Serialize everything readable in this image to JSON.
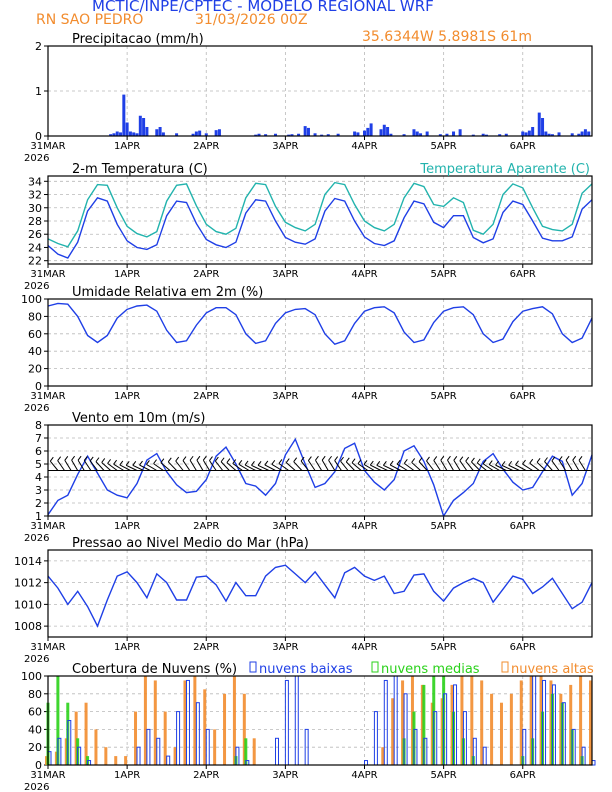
{
  "header": {
    "title": "MCTIC/INPE/CPTEC - MODELO REGIONAL WRF",
    "station": "RN SAO PEDRO",
    "init": "31/03/2026 00Z",
    "coords": "35.6344W 5.8981S 61m"
  },
  "colors": {
    "blue": "#1f3fe6",
    "teal": "#22b3ad",
    "orange": "#f28c2e",
    "green": "#2ad11a",
    "grid": "#b9b9b9",
    "axis": "#000000"
  },
  "x_axis": {
    "ticks": [
      "31MAR",
      "1APR",
      "2APR",
      "3APR",
      "4APR",
      "5APR",
      "6APR"
    ],
    "year": "2026",
    "hours_per_day": 24,
    "range_hours": [
      0,
      165
    ]
  },
  "chart_data": [
    {
      "type": "bar",
      "title": "Precipitacao (mm/h)",
      "ylim": [
        0,
        2
      ],
      "yticks": [
        0,
        1,
        2
      ],
      "x": [
        19,
        20,
        21,
        22,
        23,
        24,
        25,
        26,
        27,
        28,
        29,
        30,
        33,
        34,
        35,
        39,
        44,
        45,
        46,
        48,
        51,
        52,
        63,
        64,
        66,
        69,
        73,
        74,
        76,
        78,
        79,
        81,
        83,
        85,
        88,
        93,
        94,
        96,
        97,
        98,
        101,
        102,
        103,
        104,
        108,
        111,
        112,
        113,
        115,
        119,
        121,
        123,
        125,
        129,
        132,
        133,
        137,
        139,
        144,
        145,
        146,
        147,
        149,
        150,
        151,
        152,
        153,
        155,
        159,
        161,
        162,
        163,
        164
      ],
      "values": [
        0.04,
        0.06,
        0.1,
        0.08,
        0.92,
        0.3,
        0.1,
        0.08,
        0.06,
        0.45,
        0.4,
        0.2,
        0.15,
        0.2,
        0.08,
        0.06,
        0.05,
        0.1,
        0.12,
        0.06,
        0.13,
        0.15,
        0.03,
        0.05,
        0.04,
        0.05,
        0.03,
        0.04,
        0.05,
        0.22,
        0.18,
        0.06,
        0.03,
        0.04,
        0.05,
        0.1,
        0.08,
        0.12,
        0.18,
        0.28,
        0.15,
        0.25,
        0.2,
        0.05,
        0.04,
        0.15,
        0.1,
        0.06,
        0.1,
        0.04,
        0.05,
        0.1,
        0.15,
        0.03,
        0.05,
        0.03,
        0.04,
        0.05,
        0.1,
        0.08,
        0.12,
        0.2,
        0.52,
        0.4,
        0.1,
        0.05,
        0.04,
        0.08,
        0.06,
        0.05,
        0.1,
        0.15,
        0.1
      ],
      "series_colors": [
        "blue"
      ]
    },
    {
      "type": "line",
      "title": "2-m Temperatura (C)",
      "title2": "Temperatura Aparente (C)",
      "ylim": [
        21.5,
        34.8
      ],
      "yticks": [
        22,
        24,
        26,
        28,
        30,
        32,
        34
      ],
      "x": [
        0,
        3,
        6,
        9,
        12,
        15,
        18,
        21,
        24,
        27,
        30,
        33,
        36,
        39,
        42,
        45,
        48,
        51,
        54,
        57,
        60,
        63,
        66,
        69,
        72,
        75,
        78,
        81,
        84,
        87,
        90,
        93,
        96,
        99,
        102,
        105,
        108,
        111,
        114,
        117,
        120,
        123,
        126,
        129,
        132,
        135,
        138,
        141,
        144,
        147,
        150,
        153,
        156,
        159,
        162,
        165
      ],
      "series": [
        {
          "name": "Temperatura Aparente (C)",
          "color": "teal",
          "values": [
            25.3,
            24.6,
            24.1,
            26.5,
            31.2,
            33.5,
            33.4,
            30.0,
            27.2,
            26.1,
            25.6,
            26.4,
            31.0,
            33.4,
            33.6,
            30.3,
            27.5,
            26.4,
            26.0,
            26.9,
            31.5,
            33.7,
            33.5,
            30.2,
            27.8,
            27.0,
            26.5,
            27.5,
            32.0,
            33.8,
            33.5,
            30.5,
            28.0,
            27.0,
            26.5,
            27.5,
            31.5,
            33.7,
            33.2,
            30.5,
            30.2,
            31.5,
            30.8,
            26.6,
            26.0,
            27.5,
            32.0,
            33.6,
            33.0,
            30.0,
            27.2,
            26.7,
            26.5,
            27.5,
            32.2,
            33.6
          ]
        },
        {
          "name": "2-m Temperatura (C)",
          "color": "blue",
          "values": [
            24.3,
            23.0,
            22.4,
            24.8,
            29.5,
            31.5,
            31.0,
            27.5,
            25.0,
            24.0,
            23.7,
            24.4,
            28.8,
            31.0,
            30.8,
            27.6,
            25.2,
            24.4,
            24.0,
            24.8,
            29.2,
            31.2,
            31.0,
            28.0,
            25.5,
            24.8,
            24.5,
            25.3,
            29.5,
            31.4,
            31.0,
            28.0,
            25.6,
            24.6,
            24.3,
            25.0,
            28.5,
            31.0,
            30.6,
            27.8,
            27.0,
            28.8,
            28.8,
            25.5,
            24.7,
            25.3,
            29.3,
            31.0,
            30.5,
            28.0,
            25.4,
            25.0,
            25.0,
            25.6,
            29.8,
            31.2
          ]
        }
      ]
    },
    {
      "type": "line",
      "title": "Umidade Relativa em 2m (%)",
      "ylim": [
        0,
        100
      ],
      "yticks": [
        0,
        20,
        40,
        60,
        80,
        100
      ],
      "x": [
        0,
        3,
        6,
        9,
        12,
        15,
        18,
        21,
        24,
        27,
        30,
        33,
        36,
        39,
        42,
        45,
        48,
        51,
        54,
        57,
        60,
        63,
        66,
        69,
        72,
        75,
        78,
        81,
        84,
        87,
        90,
        93,
        96,
        99,
        102,
        105,
        108,
        111,
        114,
        117,
        120,
        123,
        126,
        129,
        132,
        135,
        138,
        141,
        144,
        147,
        150,
        153,
        156,
        159,
        162,
        165
      ],
      "series": [
        {
          "name": "Umidade Relativa",
          "color": "blue",
          "values": [
            92,
            95,
            94,
            80,
            58,
            50,
            58,
            78,
            88,
            92,
            93,
            86,
            64,
            50,
            52,
            70,
            84,
            90,
            90,
            82,
            60,
            49,
            52,
            72,
            84,
            88,
            89,
            82,
            60,
            48,
            52,
            72,
            86,
            90,
            91,
            84,
            62,
            50,
            53,
            73,
            86,
            90,
            91,
            82,
            60,
            50,
            54,
            74,
            86,
            89,
            91,
            83,
            60,
            50,
            55,
            78
          ]
        }
      ]
    },
    {
      "type": "line",
      "title": "Vento em 10m (m/s)",
      "ylim": [
        1,
        8
      ],
      "yticks": [
        1,
        2,
        3,
        4,
        5,
        6,
        7,
        8
      ],
      "x": [
        0,
        3,
        6,
        9,
        12,
        15,
        18,
        21,
        24,
        27,
        30,
        33,
        36,
        39,
        42,
        45,
        48,
        51,
        54,
        57,
        60,
        63,
        66,
        69,
        72,
        75,
        78,
        81,
        84,
        87,
        90,
        93,
        96,
        99,
        102,
        105,
        108,
        111,
        114,
        117,
        120,
        123,
        126,
        129,
        132,
        135,
        138,
        141,
        144,
        147,
        150,
        153,
        156,
        159,
        162,
        165
      ],
      "series": [
        {
          "name": "Vento",
          "color": "blue",
          "values": [
            1.1,
            2.2,
            2.6,
            4.2,
            5.6,
            4.3,
            3.0,
            2.6,
            2.4,
            3.5,
            5.3,
            5.8,
            4.4,
            3.4,
            2.8,
            2.9,
            3.8,
            5.6,
            6.3,
            5.0,
            3.5,
            3.3,
            2.6,
            3.5,
            5.7,
            6.9,
            5.0,
            3.2,
            3.5,
            4.4,
            6.2,
            6.6,
            4.5,
            3.6,
            3.0,
            3.8,
            6.0,
            6.4,
            5.2,
            3.4,
            1.0,
            2.2,
            2.8,
            3.5,
            5.2,
            5.8,
            4.6,
            3.6,
            3.0,
            3.2,
            4.4,
            5.6,
            5.2,
            2.6,
            3.5,
            5.7
          ]
        }
      ],
      "wind_barbs_at": 4.5
    },
    {
      "type": "line",
      "title": "Pressao ao Nivel Medio do Mar (hPa)",
      "ylim": [
        1007,
        1015
      ],
      "yticks": [
        1008,
        1010,
        1012,
        1014
      ],
      "x": [
        0,
        3,
        6,
        9,
        12,
        15,
        18,
        21,
        24,
        27,
        30,
        33,
        36,
        39,
        42,
        45,
        48,
        51,
        54,
        57,
        60,
        63,
        66,
        69,
        72,
        75,
        78,
        81,
        84,
        87,
        90,
        93,
        96,
        99,
        102,
        105,
        108,
        111,
        114,
        117,
        120,
        123,
        126,
        129,
        132,
        135,
        138,
        141,
        144,
        147,
        150,
        153,
        156,
        159,
        162,
        165
      ],
      "series": [
        {
          "name": "Pressao",
          "color": "blue",
          "values": [
            1012.6,
            1011.5,
            1010.0,
            1011.2,
            1009.8,
            1008.0,
            1010.4,
            1012.6,
            1013.0,
            1012.0,
            1010.6,
            1012.8,
            1012.0,
            1010.4,
            1010.4,
            1012.5,
            1012.6,
            1011.8,
            1010.3,
            1012.0,
            1010.8,
            1010.8,
            1012.6,
            1013.4,
            1013.6,
            1012.8,
            1012.0,
            1013.0,
            1011.8,
            1010.6,
            1012.9,
            1013.4,
            1012.6,
            1012.2,
            1012.6,
            1011.0,
            1011.2,
            1012.7,
            1012.8,
            1011.2,
            1010.3,
            1011.5,
            1012.0,
            1012.4,
            1012.0,
            1010.2,
            1011.4,
            1012.6,
            1012.3,
            1011.0,
            1011.6,
            1012.4,
            1011.0,
            1009.6,
            1010.2,
            1012.0
          ]
        }
      ]
    },
    {
      "type": "bar",
      "title": "Cobertura de Nuvens (%)",
      "ylim": [
        0,
        100
      ],
      "yticks": [
        0,
        20,
        40,
        60,
        80,
        100
      ],
      "legend": [
        "nuvens baixas",
        "nuvens medias",
        "nuvens altas"
      ],
      "x": [
        0,
        3,
        6,
        9,
        12,
        15,
        18,
        21,
        24,
        27,
        30,
        33,
        36,
        39,
        42,
        45,
        48,
        51,
        54,
        57,
        60,
        63,
        66,
        69,
        72,
        75,
        78,
        81,
        84,
        87,
        90,
        93,
        96,
        99,
        102,
        105,
        108,
        111,
        114,
        117,
        120,
        123,
        126,
        129,
        132,
        135,
        138,
        141,
        144,
        147,
        150,
        153,
        156,
        159,
        162,
        165
      ],
      "series": [
        {
          "name": "nuvens altas",
          "color": "orange",
          "values": [
            10,
            15,
            30,
            60,
            70,
            40,
            20,
            10,
            10,
            60,
            100,
            95,
            60,
            20,
            95,
            100,
            85,
            40,
            80,
            100,
            80,
            30,
            0,
            0,
            0,
            0,
            0,
            0,
            0,
            0,
            0,
            0,
            0,
            0,
            20,
            75,
            95,
            100,
            90,
            70,
            75,
            90,
            100,
            100,
            95,
            80,
            70,
            80,
            95,
            100,
            100,
            95,
            80,
            90,
            100,
            95
          ]
        },
        {
          "name": "nuvens medias",
          "color": "green",
          "values": [
            70,
            100,
            70,
            30,
            10,
            0,
            0,
            0,
            0,
            0,
            0,
            0,
            0,
            0,
            0,
            0,
            0,
            0,
            0,
            10,
            30,
            0,
            0,
            0,
            0,
            0,
            0,
            0,
            0,
            0,
            0,
            0,
            0,
            0,
            0,
            0,
            30,
            60,
            90,
            100,
            100,
            60,
            30,
            10,
            0,
            0,
            0,
            0,
            10,
            30,
            60,
            80,
            70,
            40,
            10,
            0
          ]
        },
        {
          "name": "nuvens baixas",
          "color": "blue",
          "values": [
            15,
            30,
            50,
            20,
            5,
            0,
            0,
            0,
            0,
            20,
            40,
            30,
            10,
            60,
            95,
            70,
            40,
            0,
            0,
            20,
            5,
            0,
            0,
            30,
            95,
            100,
            40,
            0,
            0,
            0,
            0,
            0,
            5,
            60,
            95,
            100,
            80,
            40,
            30,
            60,
            80,
            90,
            60,
            30,
            20,
            0,
            0,
            0,
            40,
            100,
            95,
            90,
            70,
            40,
            20,
            5
          ]
        }
      ]
    }
  ]
}
